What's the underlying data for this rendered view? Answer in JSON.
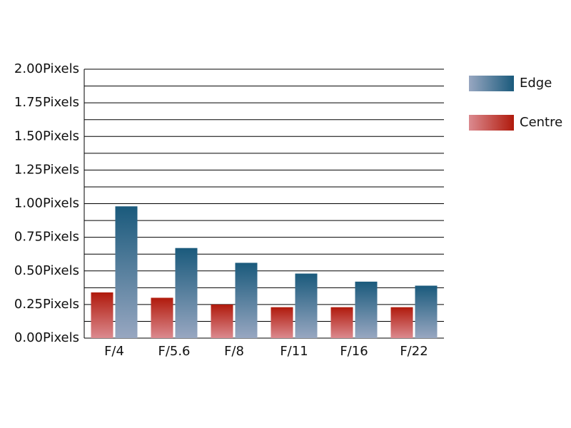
{
  "chart_data": {
    "type": "bar",
    "categories": [
      "F/4",
      "F/5.6",
      "F/8",
      "F/11",
      "F/16",
      "F/22"
    ],
    "series": [
      {
        "name": "Centre",
        "color": "#b01a0c",
        "values": [
          0.34,
          0.3,
          0.25,
          0.23,
          0.23,
          0.23
        ]
      },
      {
        "name": "Edge",
        "color": "#1a5a7c",
        "values": [
          0.98,
          0.67,
          0.56,
          0.48,
          0.42,
          0.39
        ]
      }
    ],
    "ylim": [
      0,
      2
    ],
    "yticks": [
      {
        "value": 0,
        "label": "0.00Pixels"
      },
      {
        "value": 0.25,
        "label": "0.25Pixels"
      },
      {
        "value": 0.5,
        "label": "0.50Pixels"
      },
      {
        "value": 0.75,
        "label": "0.75Pixels"
      },
      {
        "value": 1,
        "label": "1.00Pixels"
      },
      {
        "value": 1.25,
        "label": "1.25Pixels"
      },
      {
        "value": 1.5,
        "label": "1.50Pixels"
      },
      {
        "value": 1.75,
        "label": "1.75Pixels"
      },
      {
        "value": 2,
        "label": "2.00Pixels"
      }
    ],
    "yminorticks": [
      0.125,
      0.375,
      0.625,
      0.875,
      1.125,
      1.375,
      1.625,
      1.875
    ],
    "grid": true,
    "legend": "right"
  }
}
